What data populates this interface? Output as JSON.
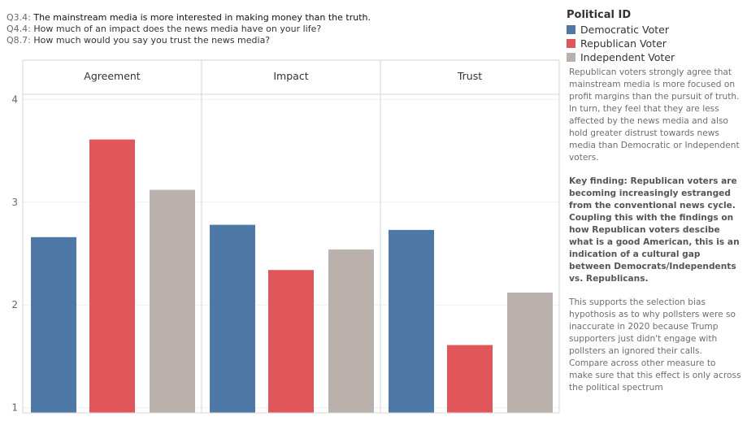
{
  "header": {
    "questions": [
      {
        "id": "Q3.4:",
        "text": " The mainstream media is more interested in making money than the truth."
      },
      {
        "id": "Q4.4:",
        "text": " How much of an impact does the news media have on your life?"
      },
      {
        "id": "Q8.7:",
        "text": " How much would you say you trust the news media?"
      }
    ]
  },
  "legend": {
    "title": "Political ID",
    "items": [
      {
        "label": "Democratic Voter",
        "color": "#4e79a7"
      },
      {
        "label": "Republican Voter",
        "color": "#e15759"
      },
      {
        "label": "Independent Voter",
        "color": "#bab0ac"
      }
    ]
  },
  "description": {
    "p1": "Republican voters strongly agree that mainstream media is more focused on profit margins than the pursuit of truth. In turn, they feel that they are less affected by the news media and also hold greater distrust towards news media than Democratic or Independent voters.",
    "p2": "Key finding: Republican voters are becoming increasingly estranged from the conventional news cycle. Coupling this with the findings on how Republican voters descibe what is a good American, this is an indication of a cultural gap between Democrats/Independents vs. Republicans.",
    "p3": "This supports the selection bias hypothosis as to why pollsters were so inaccurate in 2020 because Trump supporters just didn't engage with pollsters an ignored their calls. Compare across other measure to make sure that this effect is only across the political spectrum"
  },
  "chart_data": {
    "type": "bar",
    "categories": [
      "Agreement",
      "Impact",
      "Trust"
    ],
    "series": [
      {
        "name": "Democratic Voter",
        "color": "#4e79a7",
        "values": [
          2.66,
          2.78,
          2.73
        ]
      },
      {
        "name": "Republican Voter",
        "color": "#e15759",
        "values": [
          3.61,
          2.34,
          1.61
        ]
      },
      {
        "name": "Independent Voter",
        "color": "#bab0ac",
        "values": [
          3.12,
          2.54,
          2.12
        ]
      }
    ],
    "yticks": [
      1,
      2,
      3,
      4
    ],
    "ylim": [
      0.95,
      4.05
    ],
    "grid": true,
    "legend": "top-right"
  }
}
